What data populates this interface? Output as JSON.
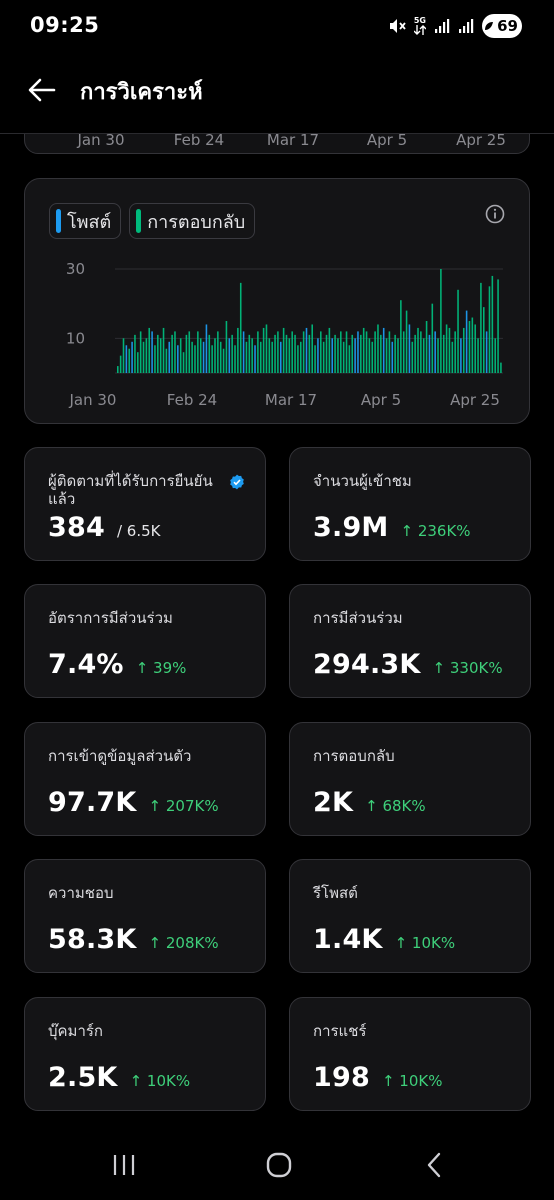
{
  "status_bar": {
    "time": "09:25",
    "network": "5G",
    "battery": "69",
    "icons": [
      "mute-icon",
      "network-5g-icon",
      "signal-icon",
      "signal-icon",
      "battery-icon"
    ]
  },
  "header": {
    "title": "การวิเคราะห์",
    "back_icon": "arrow-left-icon"
  },
  "previous_chart": {
    "x_labels": [
      "Jan 30",
      "Feb 24",
      "Mar 17",
      "Apr 5",
      "Apr 25"
    ]
  },
  "activity_chart": {
    "legend": [
      {
        "label": "โพสต์",
        "color": "#1d9bf0"
      },
      {
        "label": "การตอบกลับ",
        "color": "#00ba7c"
      }
    ],
    "info_icon": "info-icon"
  },
  "chart_data": {
    "type": "bar",
    "series": [
      {
        "name": "โพสต์",
        "color": "#1d9bf0"
      },
      {
        "name": "การตอบกลับ",
        "color": "#00ba7c"
      }
    ],
    "x_tick_labels": [
      "Jan 30",
      "Feb 24",
      "Mar 17",
      "Apr 5",
      "Apr 25"
    ],
    "y_tick_labels": [
      "10",
      "30"
    ],
    "ylim": [
      0,
      33
    ],
    "grid": true,
    "daily_totals": [
      2,
      5,
      10,
      8,
      7,
      9,
      11,
      6,
      12,
      9,
      10,
      13,
      12,
      8,
      11,
      10,
      13,
      7,
      9,
      11,
      12,
      8,
      10,
      6,
      11,
      12,
      9,
      8,
      12,
      10,
      9,
      14,
      11,
      8,
      10,
      12,
      9,
      7,
      15,
      10,
      11,
      8,
      13,
      26,
      12,
      9,
      11,
      10,
      8,
      12,
      9,
      13,
      14,
      10,
      9,
      11,
      12,
      9,
      13,
      11,
      10,
      12,
      11,
      8,
      9,
      12,
      13,
      11,
      14,
      8,
      10,
      12,
      9,
      11,
      13,
      10,
      11,
      10,
      12,
      9,
      12,
      8,
      11,
      10,
      12,
      11,
      13,
      12,
      10,
      9,
      12,
      14,
      11,
      13,
      10,
      12,
      9,
      11,
      10,
      21,
      12,
      18,
      14,
      9,
      11,
      13,
      12,
      10,
      15,
      11,
      20,
      12,
      10,
      30,
      11,
      14,
      13,
      9,
      12,
      24,
      10,
      13,
      18,
      15,
      16,
      14,
      10,
      26,
      19,
      12,
      25,
      28,
      10,
      27,
      3
    ]
  },
  "stats": [
    {
      "label": "ผู้ติดตามที่ได้รับการยืนยันแล้ว",
      "value": "384",
      "total": "/ 6.5K",
      "verified_icon": "verified-badge-icon"
    },
    {
      "label": "จำนวนผู้เข้าชม",
      "value": "3.9M",
      "change": "↑ 236K%"
    },
    {
      "label": "อัตราการมีส่วนร่วม",
      "value": "7.4%",
      "change": "↑ 39%"
    },
    {
      "label": "การมีส่วนร่วม",
      "value": "294.3K",
      "change": "↑ 330K%"
    },
    {
      "label": "การเข้าดูข้อมูลส่วนตัว",
      "value": "97.7K",
      "change": "↑ 207K%"
    },
    {
      "label": "การตอบกลับ",
      "value": "2K",
      "change": "↑ 68K%"
    },
    {
      "label": "ความชอบ",
      "value": "58.3K",
      "change": "↑ 208K%"
    },
    {
      "label": "รีโพสต์",
      "value": "1.4K",
      "change": "↑ 10K%"
    },
    {
      "label": "บุ๊คมาร์ก",
      "value": "2.5K",
      "change": "↑ 10K%"
    },
    {
      "label": "การแชร์",
      "value": "198",
      "change": "↑ 10K%"
    }
  ],
  "nav_bar": {
    "icons": [
      "recent-apps-icon",
      "home-icon",
      "back-icon"
    ]
  },
  "colors": {
    "background": "#000000",
    "card": "#141416",
    "card_border": "#333338",
    "positive": "#3ecf7a",
    "accent_blue": "#1d9bf0",
    "accent_green": "#00ba7c"
  }
}
